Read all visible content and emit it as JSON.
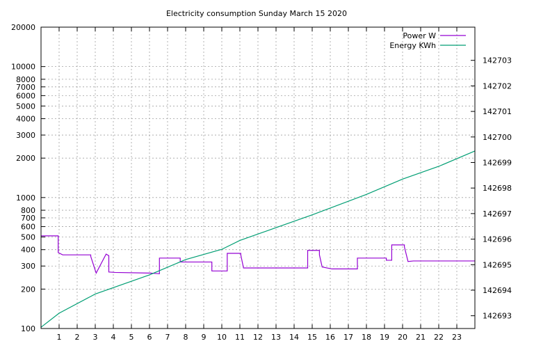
{
  "chart_data": {
    "type": "line",
    "title": "Electricity consumption Sunday March 15 2020",
    "x_range": [
      0,
      24
    ],
    "x_ticks": [
      1,
      2,
      3,
      4,
      5,
      6,
      7,
      8,
      9,
      10,
      11,
      12,
      13,
      14,
      15,
      16,
      17,
      18,
      19,
      20,
      21,
      22,
      23
    ],
    "y_left_scale": "log",
    "y_left_range": [
      100,
      20000
    ],
    "y_left_ticks": [
      100,
      200,
      300,
      400,
      500,
      600,
      700,
      800,
      1000,
      2000,
      3000,
      4000,
      5000,
      6000,
      7000,
      8000,
      10000,
      20000
    ],
    "y_right_range": [
      142692.5,
      142704.3
    ],
    "y_right_ticks": [
      142693,
      142694,
      142695,
      142696,
      142697,
      142698,
      142699,
      142700,
      142701,
      142702,
      142703
    ],
    "grid": true,
    "legend_position": "top-right",
    "series": [
      {
        "name": "Power W",
        "axis": "left",
        "color": "#9400d3",
        "x": [
          0,
          0.95,
          0.95,
          1.2,
          1.2,
          2.75,
          2.75,
          3.05,
          3.05,
          3.6,
          3.6,
          3.75,
          3.75,
          4.1,
          4.1,
          6.05,
          6.05,
          6.55,
          6.55,
          7.7,
          7.7,
          9.45,
          9.45,
          10.3,
          10.3,
          11.05,
          11.05,
          11.2,
          11.2,
          14.75,
          14.75,
          15.4,
          15.4,
          15.55,
          15.55,
          16.1,
          16.1,
          17.5,
          17.5,
          19.1,
          19.1,
          19.4,
          19.4,
          20.1,
          20.1,
          20.3,
          20.3,
          20.6,
          20.6,
          24
        ],
        "values": [
          510,
          510,
          380,
          365,
          365,
          365,
          355,
          265,
          265,
          370,
          370,
          360,
          270,
          268,
          268,
          265,
          265,
          262,
          345,
          345,
          322,
          322,
          275,
          275,
          375,
          375,
          365,
          290,
          290,
          290,
          395,
          395,
          365,
          295,
          295,
          285,
          285,
          285,
          345,
          345,
          332,
          332,
          435,
          435,
          420,
          325,
          325,
          328,
          328,
          328
        ]
      },
      {
        "name": "Energy KWh",
        "axis": "right",
        "color": "#009e73",
        "x": [
          0,
          1,
          3,
          6,
          8,
          10,
          11,
          13,
          15,
          18,
          20,
          22,
          24
        ],
        "values": [
          142692.55,
          142693.1,
          142693.85,
          142694.6,
          142695.2,
          142695.6,
          142695.95,
          142696.45,
          142696.95,
          142697.75,
          142698.35,
          142698.85,
          142699.45
        ]
      }
    ]
  }
}
